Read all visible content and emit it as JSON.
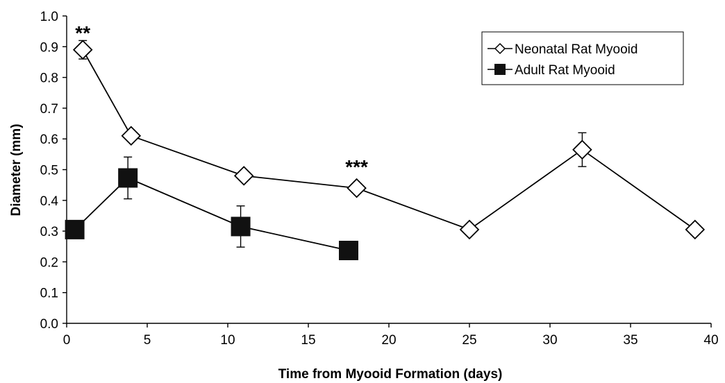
{
  "chart_data": {
    "type": "line",
    "xlabel": "Time from Myooid Formation (days)",
    "ylabel": "Diameter (mm)",
    "xlim": [
      0,
      40
    ],
    "ylim": [
      0,
      1.0
    ],
    "x_ticks": [
      "0",
      "5",
      "10",
      "15",
      "20",
      "25",
      "30",
      "35",
      "40"
    ],
    "y_ticks": [
      "0.0",
      "0.1",
      "0.2",
      "0.3",
      "0.4",
      "0.5",
      "0.6",
      "0.7",
      "0.8",
      "0.9",
      "1.0"
    ],
    "grid": false,
    "legend_position": "top-right",
    "series": [
      {
        "name": "Neonatal Rat Myooid",
        "marker": "open-diamond",
        "color": "#000000",
        "x": [
          1,
          4,
          11,
          18,
          25,
          32,
          39
        ],
        "y": [
          0.89,
          0.61,
          0.48,
          0.44,
          0.305,
          0.565,
          0.305
        ],
        "error": [
          0.03,
          null,
          null,
          null,
          null,
          0.055,
          null
        ]
      },
      {
        "name": "Adult Rat Myooid",
        "marker": "filled-square",
        "color": "#000000",
        "x": [
          0.5,
          3.8,
          10.8,
          17.5
        ],
        "y": [
          0.305,
          0.473,
          0.315,
          0.237
        ],
        "error": [
          null,
          0.068,
          0.067,
          null
        ]
      }
    ],
    "annotations": [
      {
        "text": "**",
        "x": 1,
        "y": 0.95
      },
      {
        "text": "***",
        "x": 18,
        "y": 0.515
      }
    ]
  }
}
